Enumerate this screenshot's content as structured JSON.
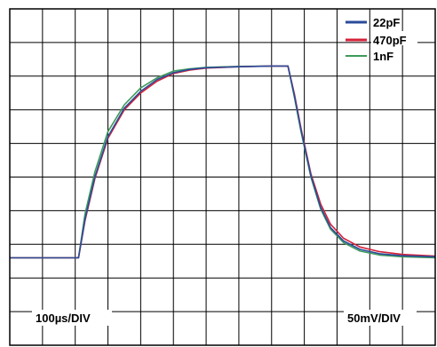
{
  "chart_data": {
    "type": "line",
    "grid": true,
    "x_divisions": 13,
    "y_divisions": 10,
    "xlim": [
      0,
      13
    ],
    "ylim": [
      0,
      10
    ],
    "legend_position": "top-right",
    "time_scale_label": "100µs/DIV",
    "voltage_scale_label": "50mV/DIV",
    "series": [
      {
        "name": "22pF",
        "color": "#2b4b9b",
        "x": [
          0,
          2.1,
          2.3,
          2.6,
          3.0,
          3.5,
          4.0,
          4.5,
          5.0,
          5.5,
          6.0,
          7.0,
          8.0,
          8.5,
          8.7,
          8.9,
          9.2,
          9.5,
          9.8,
          10.2,
          10.7,
          11.3,
          12.0,
          13.0
        ],
        "y": [
          2.6,
          2.6,
          3.75,
          5.0,
          6.2,
          7.05,
          7.55,
          7.9,
          8.1,
          8.2,
          8.25,
          8.28,
          8.3,
          8.3,
          7.4,
          6.4,
          5.05,
          4.1,
          3.5,
          3.1,
          2.85,
          2.72,
          2.66,
          2.63
        ]
      },
      {
        "name": "470pF",
        "color": "#d42238",
        "x": [
          0,
          2.1,
          2.3,
          2.6,
          3.0,
          3.5,
          4.0,
          4.5,
          5.0,
          5.5,
          6.0,
          7.0,
          8.0,
          8.5,
          8.7,
          8.9,
          9.2,
          9.5,
          9.8,
          10.2,
          10.7,
          11.3,
          12.0,
          13.0
        ],
        "y": [
          2.6,
          2.6,
          3.7,
          4.95,
          6.15,
          7.0,
          7.5,
          7.85,
          8.08,
          8.18,
          8.24,
          8.28,
          8.3,
          8.3,
          7.45,
          6.45,
          5.1,
          4.2,
          3.6,
          3.18,
          2.92,
          2.78,
          2.7,
          2.65
        ]
      },
      {
        "name": "1nF",
        "color": "#3d9a5a",
        "x": [
          0,
          2.1,
          2.3,
          2.6,
          3.0,
          3.5,
          4.0,
          4.5,
          5.0,
          5.5,
          6.0,
          7.0,
          8.0,
          8.5,
          8.7,
          8.9,
          9.2,
          9.5,
          9.8,
          10.2,
          10.7,
          11.3,
          12.0,
          13.0
        ],
        "y": [
          2.6,
          2.6,
          3.9,
          5.15,
          6.35,
          7.15,
          7.65,
          7.95,
          8.15,
          8.22,
          8.26,
          8.29,
          8.3,
          8.3,
          7.35,
          6.35,
          5.0,
          4.05,
          3.45,
          3.05,
          2.8,
          2.68,
          2.63,
          2.6
        ]
      }
    ]
  }
}
